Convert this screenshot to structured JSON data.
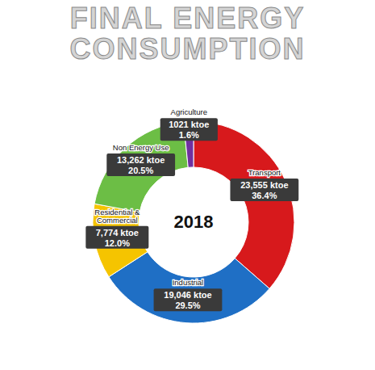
{
  "chart_data": {
    "type": "donut",
    "title": "FINAL ENERGY CONSUMPTION",
    "center_label": "2018",
    "categories": [
      "Transport",
      "Industrial",
      "Residential & Commercial",
      "Non Energy Use",
      "Agriculture"
    ],
    "values": [
      23555,
      19046,
      7774,
      13262,
      1021
    ],
    "value_labels": [
      "23,555 ktoe",
      "19,046 ktoe",
      "7,774 ktoe",
      "13,262 ktoe",
      "1021 ktoe"
    ],
    "percentages": [
      36.4,
      29.5,
      12.0,
      20.5,
      1.6
    ],
    "percentage_labels": [
      "36.4%",
      "29.5%",
      "12.0%",
      "20.5%",
      "1.6%"
    ],
    "colors": [
      "#d7191c",
      "#1f6fc5",
      "#f5c400",
      "#6cbe45",
      "#7030a0"
    ],
    "data_labels": true
  }
}
